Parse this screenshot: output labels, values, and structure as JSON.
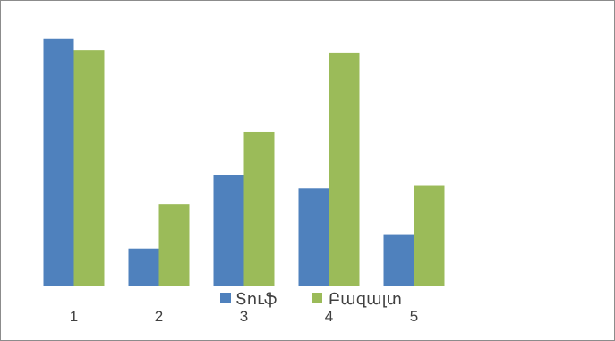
{
  "chart_data": {
    "type": "bar",
    "categories": [
      "1",
      "2",
      "3",
      "4",
      "5"
    ],
    "series": [
      {
        "name": "Տուֆ",
        "values": [
          100,
          15,
          45,
          39.5,
          20.5
        ],
        "color": "#4f81bd"
      },
      {
        "name": "Բազալտ",
        "values": [
          95.5,
          33,
          62.5,
          94.5,
          40.5
        ],
        "color": "#9bbb59"
      }
    ],
    "ylim": [
      0,
      105
    ],
    "grid": false,
    "legend_position": "bottom"
  }
}
